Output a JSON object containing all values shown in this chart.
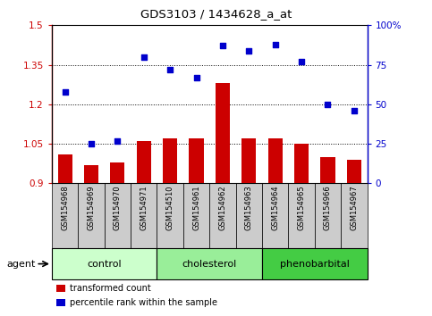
{
  "title": "GDS3103 / 1434628_a_at",
  "samples": [
    "GSM154968",
    "GSM154969",
    "GSM154970",
    "GSM154971",
    "GSM154510",
    "GSM154961",
    "GSM154962",
    "GSM154963",
    "GSM154964",
    "GSM154965",
    "GSM154966",
    "GSM154967"
  ],
  "bar_values": [
    1.01,
    0.97,
    0.98,
    1.06,
    1.07,
    1.07,
    1.28,
    1.07,
    1.07,
    1.05,
    1.0,
    0.99
  ],
  "scatter_values": [
    58,
    25,
    27,
    80,
    72,
    67,
    87,
    84,
    88,
    77,
    50,
    46
  ],
  "bar_color": "#cc0000",
  "scatter_color": "#0000cc",
  "ylim_left": [
    0.9,
    1.5
  ],
  "ylim_right": [
    0,
    100
  ],
  "yticks_left": [
    0.9,
    1.05,
    1.2,
    1.35,
    1.5
  ],
  "yticks_right": [
    0,
    25,
    50,
    75,
    100
  ],
  "ytick_labels_left": [
    "0.9",
    "1.05",
    "1.2",
    "1.35",
    "1.5"
  ],
  "ytick_labels_right": [
    "0",
    "25",
    "50",
    "75",
    "100%"
  ],
  "hlines": [
    1.05,
    1.2,
    1.35
  ],
  "groups": [
    {
      "label": "control",
      "indices": [
        0,
        1,
        2,
        3
      ],
      "color": "#ccffcc"
    },
    {
      "label": "cholesterol",
      "indices": [
        4,
        5,
        6,
        7
      ],
      "color": "#99ee99"
    },
    {
      "label": "phenobarbital",
      "indices": [
        8,
        9,
        10,
        11
      ],
      "color": "#44cc44"
    }
  ],
  "legend_items": [
    {
      "label": "transformed count",
      "color": "#cc0000"
    },
    {
      "label": "percentile rank within the sample",
      "color": "#0000cc"
    }
  ],
  "bar_width": 0.55,
  "scatter_size": 22,
  "tick_bg_color": "#cccccc",
  "bar_bottom": 0.9
}
